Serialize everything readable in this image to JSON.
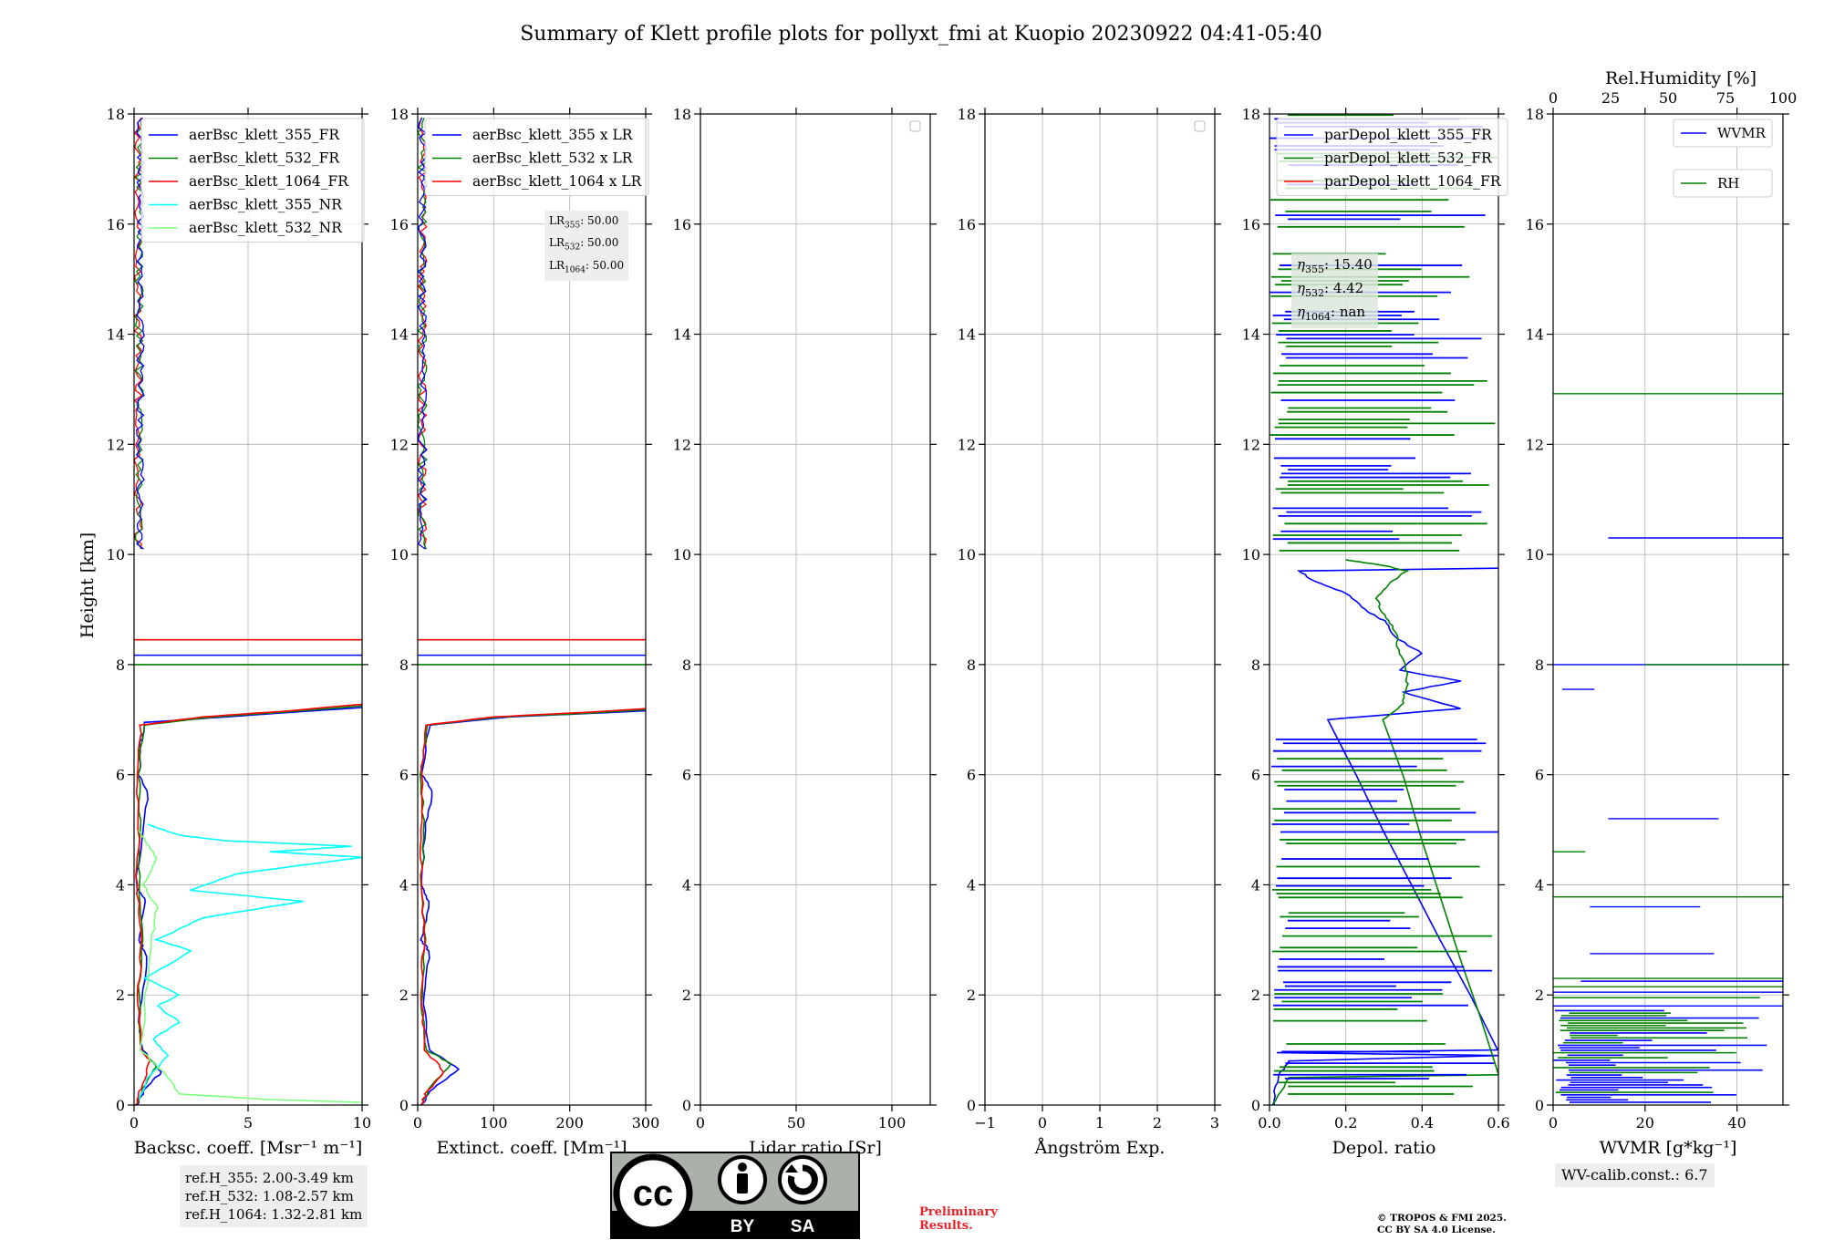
{
  "title": "Summary of Klett profile plots for pollyxt_fmi at Kuopio 20230922 04:41-05:40",
  "ylabel": "Height [km]",
  "colors": {
    "c355": "#0000ff",
    "c532": "#008000",
    "c1064": "#ff0000",
    "c355nr": "#00ffff",
    "c532nr": "#7cff7c",
    "grid": "#b0b0b0"
  },
  "chart_data": [
    {
      "type": "line",
      "id": "backscatter",
      "xlabel": "Backsc. coeff. [Msr⁻¹ m⁻¹]",
      "xlim": [
        0,
        10
      ],
      "ylim": [
        0,
        18
      ],
      "xticks": [
        0,
        5,
        10
      ],
      "yticks": [
        0,
        2,
        4,
        6,
        8,
        10,
        12,
        14,
        16,
        18
      ],
      "legend": {
        "position": "top-left",
        "entries": [
          "aerBsc_klett_355_FR",
          "aerBsc_klett_532_FR",
          "aerBsc_klett_1064_FR",
          "aerBsc_klett_355_NR",
          "aerBsc_klett_532_NR"
        ]
      },
      "series": [
        {
          "name": "aerBsc_klett_355_FR",
          "color": "#0000ff",
          "points": [
            [
              0.1,
              0
            ],
            [
              0.5,
              0.3
            ],
            [
              1.2,
              0.6
            ],
            [
              0.4,
              1.0
            ],
            [
              0.2,
              1.5
            ],
            [
              0.6,
              2.7
            ],
            [
              0.2,
              3.0
            ],
            [
              0.5,
              3.7
            ],
            [
              0.1,
              4.0
            ],
            [
              0.3,
              4.8
            ],
            [
              0.6,
              5.7
            ],
            [
              0.2,
              6.0
            ],
            [
              0.3,
              6.6
            ],
            [
              0.5,
              6.95
            ],
            [
              4.0,
              7.05
            ],
            [
              7.5,
              7.15
            ],
            [
              10,
              7.22
            ]
          ]
        },
        {
          "name": "aerBsc_klett_532_FR",
          "color": "#008000",
          "points": [
            [
              0.1,
              0
            ],
            [
              0.4,
              0.3
            ],
            [
              1.0,
              0.7
            ],
            [
              0.3,
              1.0
            ],
            [
              0.2,
              2.0
            ],
            [
              0.4,
              3.0
            ],
            [
              0.2,
              4.0
            ],
            [
              0.3,
              5.0
            ],
            [
              0.2,
              6.0
            ],
            [
              0.4,
              6.9
            ],
            [
              3.5,
              7.05
            ],
            [
              7.0,
              7.15
            ],
            [
              10,
              7.25
            ]
          ]
        },
        {
          "name": "aerBsc_klett_1064_FR",
          "color": "#ff0000",
          "points": [
            [
              0.1,
              0
            ],
            [
              0.3,
              0.3
            ],
            [
              0.7,
              0.8
            ],
            [
              0.3,
              1.0
            ],
            [
              0.2,
              2.0
            ],
            [
              0.3,
              3.0
            ],
            [
              0.1,
              4.0
            ],
            [
              0.2,
              5.0
            ],
            [
              0.1,
              6.0
            ],
            [
              0.3,
              6.9
            ],
            [
              3.0,
              7.05
            ],
            [
              6.5,
              7.15
            ],
            [
              10,
              7.28
            ]
          ]
        },
        {
          "name": "aerBsc_klett_355_NR",
          "color": "#00ffff",
          "points": [
            [
              0.2,
              0.1
            ],
            [
              0.6,
              0.5
            ],
            [
              1.5,
              0.9
            ],
            [
              0.8,
              1.2
            ],
            [
              2.0,
              1.5
            ],
            [
              1.0,
              1.8
            ],
            [
              2.0,
              2.0
            ],
            [
              0.5,
              2.3
            ],
            [
              2.5,
              2.8
            ],
            [
              1.0,
              3.0
            ],
            [
              3.0,
              3.4
            ],
            [
              7.4,
              3.7
            ],
            [
              2.5,
              3.9
            ],
            [
              4.5,
              4.2
            ],
            [
              10,
              4.5
            ],
            [
              6.0,
              4.6
            ],
            [
              9.6,
              4.7
            ],
            [
              4.0,
              4.8
            ],
            [
              2.0,
              4.9
            ],
            [
              0.6,
              5.1
            ]
          ]
        },
        {
          "name": "aerBsc_klett_532_NR",
          "color": "#7cff7c",
          "points": [
            [
              10,
              0.05
            ],
            [
              6.0,
              0.1
            ],
            [
              2.0,
              0.2
            ],
            [
              1.5,
              0.5
            ],
            [
              1.0,
              0.7
            ],
            [
              0.3,
              1.0
            ],
            [
              0.5,
              2.0
            ],
            [
              0.8,
              3.0
            ],
            [
              1.0,
              3.6
            ],
            [
              0.4,
              4.0
            ],
            [
              1.0,
              4.5
            ],
            [
              0.5,
              4.8
            ],
            [
              0.2,
              5.0
            ]
          ]
        }
      ],
      "hlines": [
        {
          "y": 8.45,
          "color": "#ff0000"
        },
        {
          "y": 8.17,
          "color": "#0000ff"
        },
        {
          "y": 8.0,
          "color": "#008000"
        }
      ],
      "annotation": {
        "lines": [
          "ref.H_355: 2.00-3.49 km",
          "ref.H_532: 1.08-2.57 km",
          "ref.H_1064: 1.32-2.81 km"
        ]
      }
    },
    {
      "type": "line",
      "id": "extinction",
      "xlabel": "Extinct. coeff. [Mm⁻¹]",
      "xlim": [
        0,
        300
      ],
      "ylim": [
        0,
        18
      ],
      "xticks": [
        0,
        100,
        200,
        300
      ],
      "yticks": [
        0,
        2,
        4,
        6,
        8,
        10,
        12,
        14,
        16,
        18
      ],
      "legend": {
        "position": "top-left",
        "entries": [
          "aerBsc_klett_355 x LR",
          "aerBsc_klett_532 x LR",
          "aerBsc_klett_1064 x LR"
        ]
      },
      "series": [
        {
          "name": "aerBsc_klett_355 x LR",
          "color": "#0000ff",
          "points": [
            [
              5,
              0
            ],
            [
              20,
              0.3
            ],
            [
              55,
              0.65
            ],
            [
              15,
              1.0
            ],
            [
              8,
              2.0
            ],
            [
              15,
              2.8
            ],
            [
              5,
              3.0
            ],
            [
              15,
              3.7
            ],
            [
              5,
              4.0
            ],
            [
              10,
              5.0
            ],
            [
              20,
              5.7
            ],
            [
              5,
              6.0
            ],
            [
              15,
              6.9
            ],
            [
              120,
              7.05
            ],
            [
              240,
              7.12
            ],
            [
              300,
              7.16
            ]
          ]
        },
        {
          "name": "aerBsc_klett_532 x LR",
          "color": "#008000",
          "points": [
            [
              5,
              0
            ],
            [
              15,
              0.3
            ],
            [
              45,
              0.75
            ],
            [
              10,
              1.0
            ],
            [
              5,
              2.0
            ],
            [
              10,
              3.0
            ],
            [
              5,
              4.0
            ],
            [
              8,
              5.0
            ],
            [
              5,
              6.0
            ],
            [
              12,
              6.9
            ],
            [
              110,
              7.05
            ],
            [
              230,
              7.12
            ],
            [
              300,
              7.18
            ]
          ]
        },
        {
          "name": "aerBsc_klett_1064 x LR",
          "color": "#ff0000",
          "points": [
            [
              5,
              0
            ],
            [
              10,
              0.2
            ],
            [
              35,
              0.6
            ],
            [
              10,
              1.0
            ],
            [
              5,
              2.0
            ],
            [
              8,
              3.0
            ],
            [
              5,
              4.0
            ],
            [
              5,
              5.0
            ],
            [
              5,
              6.0
            ],
            [
              10,
              6.9
            ],
            [
              100,
              7.05
            ],
            [
              220,
              7.13
            ],
            [
              300,
              7.2
            ]
          ]
        }
      ],
      "hlines": [
        {
          "y": 8.45,
          "color": "#ff0000"
        },
        {
          "y": 8.17,
          "color": "#0000ff"
        },
        {
          "y": 8.0,
          "color": "#008000"
        }
      ],
      "annotation": {
        "lines": [
          "LR355: 50.00",
          "LR532: 50.00",
          "LR1064: 50.00"
        ],
        "labels": [
          "LR",
          "355",
          ": 50.00",
          "532",
          "1064"
        ]
      }
    },
    {
      "type": "line",
      "id": "lidar-ratio",
      "xlabel": "Lidar ratio [Sr]",
      "xlim": [
        0,
        120
      ],
      "ylim": [
        0,
        18
      ],
      "xticks": [
        0,
        50,
        100
      ],
      "yticks": [
        0,
        2,
        4,
        6,
        8,
        10,
        12,
        14,
        16,
        18
      ],
      "legend": {
        "position": "top-right",
        "entries": []
      },
      "series": []
    },
    {
      "type": "line",
      "id": "angstrom",
      "xlabel": "Ångström Exp.",
      "xlim": [
        -1,
        3
      ],
      "ylim": [
        0,
        18
      ],
      "xticks": [
        -1,
        0,
        1,
        2,
        3
      ],
      "yticks": [
        0,
        2,
        4,
        6,
        8,
        10,
        12,
        14,
        16,
        18
      ],
      "legend": {
        "position": "top-right",
        "entries": []
      },
      "series": []
    },
    {
      "type": "line",
      "id": "depol",
      "xlabel": "Depol. ratio",
      "xlim": [
        0,
        0.6
      ],
      "ylim": [
        0,
        18
      ],
      "xticks": [
        0.0,
        0.2,
        0.4,
        0.6
      ],
      "xticklabels": [
        "0.0",
        "0.2",
        "0.4",
        "0.6"
      ],
      "yticks": [
        0,
        2,
        4,
        6,
        8,
        10,
        12,
        14,
        16,
        18
      ],
      "legend": {
        "position": "top-left",
        "entries": [
          "parDepol_klett_355_FR",
          "parDepol_klett_532_FR",
          "parDepol_klett_1064_FR"
        ]
      },
      "series": [
        {
          "name": "parDepol_klett_355_FR",
          "color": "#0000ff",
          "points": [
            [
              0.01,
              0
            ],
            [
              0.02,
              0.5
            ],
            [
              0.05,
              0.8
            ],
            [
              0.6,
              0.9
            ],
            [
              0.02,
              0.95
            ],
            [
              0.6,
              1.0
            ],
            [
              0.15,
              7.0
            ],
            [
              0.5,
              7.2
            ],
            [
              0.35,
              7.5
            ],
            [
              0.5,
              7.7
            ],
            [
              0.34,
              7.9
            ],
            [
              0.4,
              8.2
            ],
            [
              0.33,
              8.5
            ],
            [
              0.3,
              8.8
            ],
            [
              0.25,
              9.0
            ],
            [
              0.2,
              9.3
            ],
            [
              0.12,
              9.5
            ],
            [
              0.08,
              9.7
            ],
            [
              0.6,
              9.75
            ]
          ]
        },
        {
          "name": "parDepol_klett_532_FR",
          "color": "#008000",
          "points": [
            [
              0.01,
              0
            ],
            [
              0.05,
              0.5
            ],
            [
              0.6,
              0.55
            ],
            [
              0.3,
              7.0
            ],
            [
              0.35,
              7.3
            ],
            [
              0.36,
              7.6
            ],
            [
              0.36,
              7.9
            ],
            [
              0.34,
              8.2
            ],
            [
              0.33,
              8.6
            ],
            [
              0.3,
              8.9
            ],
            [
              0.28,
              9.2
            ],
            [
              0.32,
              9.5
            ],
            [
              0.36,
              9.7
            ],
            [
              0.3,
              9.8
            ],
            [
              0.2,
              9.9
            ]
          ]
        },
        {
          "name": "parDepol_klett_1064_FR",
          "color": "#ff0000",
          "points": []
        }
      ],
      "annotation": {
        "lines": [
          "η355: 15.40",
          "η532: 4.42",
          "η1064: nan"
        ],
        "labels": [
          "η",
          "355",
          ": 15.40",
          "532",
          ": 4.42",
          "1064",
          ": nan"
        ]
      }
    },
    {
      "type": "line",
      "id": "wvmr",
      "xlabel": "WVMR [g*kg⁻¹]",
      "xlim": [
        0,
        50
      ],
      "ylim": [
        0,
        18
      ],
      "xticks": [
        0,
        20,
        40
      ],
      "yticks": [
        0,
        2,
        4,
        6,
        8,
        10,
        12,
        14,
        16,
        18
      ],
      "top_axis": {
        "label": "Rel.Humidity [%]",
        "lim": [
          0,
          100
        ],
        "ticks": [
          0,
          25,
          50,
          75,
          100
        ]
      },
      "legend": {
        "position": "top-right",
        "entries": [
          "WVMR",
          "RH"
        ]
      },
      "series": [],
      "segments": [
        {
          "color": "#008000",
          "y": 12.92,
          "x": [
            0,
            50
          ]
        },
        {
          "color": "#0000ff",
          "y": 10.3,
          "x": [
            12,
            50
          ]
        },
        {
          "color": "#0000ff",
          "y": 8.0,
          "x": [
            0,
            50
          ]
        },
        {
          "color": "#008000",
          "y": 8.0,
          "x": [
            20,
            50
          ]
        },
        {
          "color": "#0000ff",
          "y": 7.55,
          "x": [
            2,
            9
          ]
        },
        {
          "color": "#0000ff",
          "y": 5.2,
          "x": [
            12,
            36
          ]
        },
        {
          "color": "#008000",
          "y": 4.6,
          "x": [
            0,
            7
          ]
        },
        {
          "color": "#008000",
          "y": 3.78,
          "x": [
            0,
            50
          ]
        },
        {
          "color": "#0000ff",
          "y": 3.6,
          "x": [
            8,
            32
          ]
        },
        {
          "color": "#0000ff",
          "y": 2.75,
          "x": [
            8,
            35
          ]
        },
        {
          "color": "#0000ff",
          "y": 2.25,
          "x": [
            6,
            50
          ]
        },
        {
          "color": "#008000",
          "y": 2.3,
          "x": [
            0,
            50
          ]
        },
        {
          "color": "#008000",
          "y": 2.15,
          "x": [
            0,
            50
          ]
        },
        {
          "color": "#0000ff",
          "y": 2.05,
          "x": [
            0,
            50
          ]
        },
        {
          "color": "#008000",
          "y": 1.95,
          "x": [
            0,
            45
          ]
        },
        {
          "color": "#0000ff",
          "y": 1.8,
          "x": [
            0,
            50
          ]
        }
      ],
      "annotation": {
        "lines": [
          "WV-calib.const.: 6.7"
        ]
      }
    }
  ],
  "footer": {
    "prelim_line1": "Preliminary",
    "prelim_line2": "Results.",
    "copyright_line1": "© TROPOS & FMI 2025.",
    "copyright_line2": "CC BY SA 4.0 License.",
    "cc_text": "cc",
    "by_label": "BY",
    "sa_label": "SA"
  }
}
